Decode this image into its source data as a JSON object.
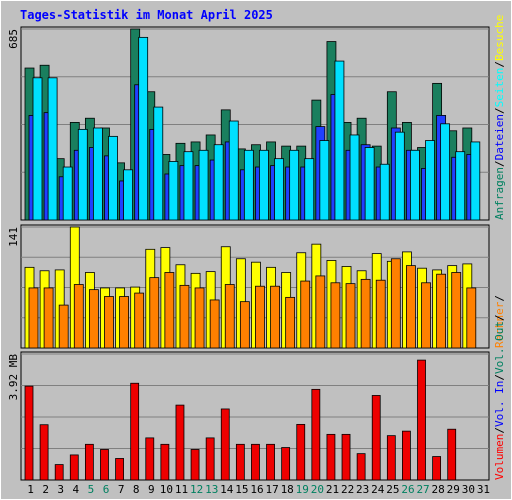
{
  "chart_data": {
    "type": "bar",
    "title": "Tages-Statistik im Monat April 2025",
    "categories": [
      "1",
      "2",
      "3",
      "4",
      "5",
      "6",
      "7",
      "8",
      "9",
      "10",
      "11",
      "12",
      "13",
      "14",
      "15",
      "16",
      "17",
      "18",
      "19",
      "20",
      "21",
      "22",
      "23",
      "24",
      "25",
      "26",
      "27",
      "28",
      "29",
      "30",
      "31"
    ],
    "weekend_days": [
      "5",
      "6",
      "12",
      "13",
      "19",
      "20",
      "26",
      "27"
    ],
    "panels": [
      {
        "name": "requests",
        "ymax_label": "685",
        "ymax": 685,
        "legend": [
          {
            "label": "Anfragen",
            "color": "#008060"
          },
          {
            "label": "/",
            "color": "#000000"
          },
          {
            "label": "Dateien",
            "color": "#0000ff"
          },
          {
            "label": "/",
            "color": "#000000"
          },
          {
            "label": "Seiten",
            "color": "#00ffff"
          },
          {
            "label": "/",
            "color": "#000000"
          },
          {
            "label": "Besuche",
            "color": "#ffff00"
          }
        ],
        "series": [
          {
            "name": "Anfragen",
            "color": "#1a7f5e",
            "values": [
              545,
              555,
              220,
              350,
              365,
              330,
              205,
              685,
              460,
              235,
              275,
              280,
              305,
              395,
              255,
              270,
              280,
              265,
              265,
              430,
              640,
              350,
              365,
              265,
              460,
              350,
              260,
              490,
              320,
              330,
              0
            ]
          },
          {
            "name": "Dateien",
            "color": "#2040ff",
            "values": [
              375,
              385,
              155,
              250,
              260,
              230,
              140,
              485,
              325,
              165,
              195,
              195,
              215,
              280,
              180,
              190,
              195,
              190,
              190,
              335,
              450,
              250,
              270,
              190,
              330,
              250,
              185,
              375,
              225,
              235,
              0
            ]
          },
          {
            "name": "Seiten",
            "color": "#00e0ff",
            "values": [
              510,
              510,
              190,
              325,
              330,
              300,
              180,
              655,
              405,
              210,
              245,
              250,
              270,
              355,
              250,
              250,
              220,
              250,
              220,
              285,
              570,
              305,
              260,
              200,
              315,
              250,
              285,
              345,
              245,
              280,
              0
            ]
          }
        ]
      },
      {
        "name": "visits",
        "ymax_label": "141",
        "ymax": 141,
        "legend": [
          {
            "label": "Rechner",
            "color": "#ff8000"
          },
          {
            "label": "/",
            "color": "#000000"
          }
        ],
        "series": [
          {
            "name": "Besuche",
            "color": "#ffff00",
            "values": [
              94,
              90,
              91,
              141,
              88,
              70,
              70,
              71,
              115,
              117,
              97,
              87,
              89,
              118,
              104,
              100,
              94,
              88,
              111,
              121,
              102,
              95,
              90,
              110,
              101,
              112,
              93,
              91,
              96,
              98,
              0
            ]
          },
          {
            "name": "Rechner",
            "color": "#ff8000",
            "values": [
              70,
              70,
              50,
              74,
              68,
              60,
              60,
              64,
              82,
              88,
              73,
              70,
              56,
              74,
              54,
              72,
              72,
              59,
              78,
              84,
              76,
              75,
              80,
              79,
              104,
              96,
              76,
              86,
              88,
              70,
              0
            ]
          }
        ]
      },
      {
        "name": "volume",
        "ymax_label": "3.92 MB",
        "ymax": 3.92,
        "legend": [
          {
            "label": "Volumen",
            "color": "#ff0000"
          },
          {
            "label": "/",
            "color": "#000000"
          },
          {
            "label": "Vol. In",
            "color": "#0000ff"
          },
          {
            "label": "/",
            "color": "#000000"
          },
          {
            "label": "Vol. Out",
            "color": "#008060"
          },
          {
            "label": "/",
            "color": "#000000"
          }
        ],
        "series": [
          {
            "name": "Volumen",
            "color": "#ee0000",
            "values": [
              2.92,
              1.72,
              0.48,
              0.78,
              1.11,
              0.95,
              0.67,
              3.01,
              1.31,
              1.11,
              2.33,
              0.95,
              1.31,
              2.21,
              1.11,
              1.11,
              1.11,
              1.01,
              1.73,
              2.82,
              1.42,
              1.42,
              0.82,
              2.63,
              1.38,
              1.52,
              3.73,
              0.73,
              1.58,
              0,
              0
            ]
          }
        ]
      }
    ]
  }
}
